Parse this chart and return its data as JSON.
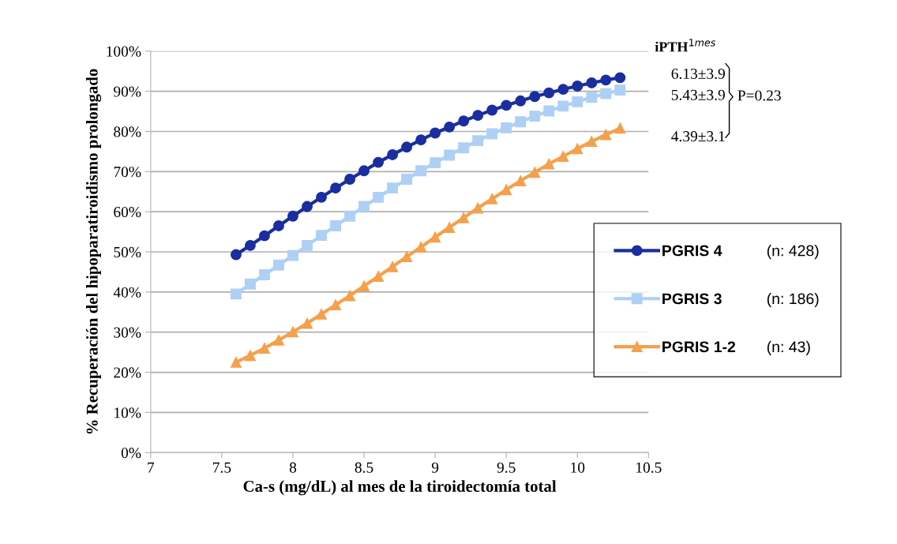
{
  "chart_data": {
    "type": "line",
    "xlabel": "Ca-s (mg/dL) al mes de la tiroidectomía total",
    "ylabel": "% Recuperación del hipoparatiroidismo prolongado",
    "x": [
      7.6,
      7.7,
      7.8,
      7.9,
      8.0,
      8.1,
      8.2,
      8.3,
      8.4,
      8.5,
      8.6,
      8.7,
      8.8,
      8.9,
      9.0,
      9.1,
      9.2,
      9.3,
      9.4,
      9.5,
      9.6,
      9.7,
      9.8,
      9.9,
      10.0,
      10.1,
      10.2,
      10.3
    ],
    "series": [
      {
        "name": "PGRIS 4",
        "color": "#1a2ea0",
        "marker": "circle",
        "values": [
          49.3,
          51.6,
          54.0,
          56.5,
          58.9,
          61.3,
          63.6,
          65.9,
          68.1,
          70.2,
          72.3,
          74.2,
          76.1,
          77.9,
          79.6,
          81.1,
          82.6,
          84.0,
          85.3,
          86.5,
          87.6,
          88.7,
          89.6,
          90.5,
          91.3,
          92.1,
          92.8,
          93.4
        ]
      },
      {
        "name": "PGRIS 3",
        "color": "#aed0f5",
        "marker": "square",
        "values": [
          39.5,
          42.0,
          44.3,
          46.7,
          49.1,
          51.6,
          54.1,
          56.5,
          58.9,
          61.3,
          63.6,
          65.9,
          68.1,
          70.2,
          72.2,
          74.1,
          75.9,
          77.7,
          79.4,
          80.9,
          82.4,
          83.8,
          85.1,
          86.3,
          87.4,
          88.5,
          89.4,
          90.3
        ]
      },
      {
        "name": "PGRIS 1-2",
        "color": "#f5a04c",
        "marker": "triangle",
        "values": [
          22.5,
          24.2,
          26.0,
          28.0,
          30.1,
          32.2,
          34.5,
          36.8,
          39.1,
          41.5,
          43.9,
          46.3,
          48.8,
          51.2,
          53.7,
          56.1,
          58.5,
          60.9,
          63.2,
          65.5,
          67.7,
          69.8,
          71.9,
          73.8,
          75.7,
          77.5,
          79.2,
          80.8
        ]
      }
    ],
    "xlim": [
      7,
      10.5
    ],
    "xticks": [
      7,
      7.5,
      8,
      8.5,
      9,
      9.5,
      10,
      10.5
    ],
    "ylim": [
      0,
      100
    ],
    "yticks": [
      {
        "value": 0,
        "label": "0%"
      },
      {
        "value": 10,
        "label": "10%"
      },
      {
        "value": 20,
        "label": "20%"
      },
      {
        "value": 30,
        "label": "30%"
      },
      {
        "value": 40,
        "label": "40%"
      },
      {
        "value": 50,
        "label": "50%"
      },
      {
        "value": 60,
        "label": "60%"
      },
      {
        "value": 70,
        "label": "70%"
      },
      {
        "value": 80,
        "label": "80%"
      },
      {
        "value": 90,
        "label": "90%"
      },
      {
        "value": 100,
        "label": "100%"
      }
    ],
    "grid": "y",
    "legend": "right",
    "line_style": "solid",
    "annotations": [
      "iPTH$^{1mes}$",
      "6.13±3.9",
      "5.43±3.9",
      "4.39±3.1",
      "P=0.23",
      "(n: 428)",
      "(n: 186)",
      "(n: 43)"
    ]
  }
}
